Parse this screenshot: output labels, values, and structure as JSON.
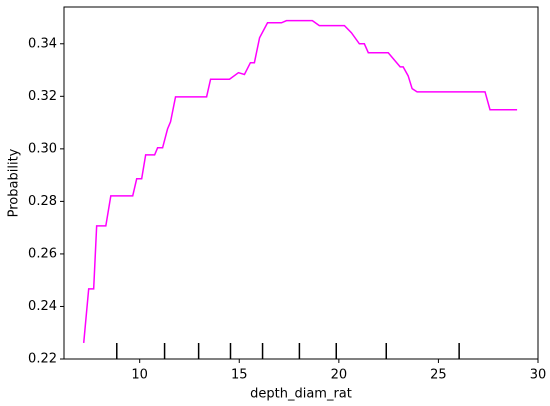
{
  "chart_data": {
    "type": "line",
    "x_label": "depth_diam_rat",
    "y_label": "Probability",
    "x": [
      7.19,
      7.44,
      7.69,
      7.84,
      8.3,
      8.55,
      9.65,
      9.85,
      10.1,
      10.3,
      10.75,
      10.9,
      11.15,
      11.4,
      11.55,
      11.8,
      13.36,
      13.56,
      14.51,
      14.96,
      15.26,
      15.56,
      15.76,
      16.02,
      16.42,
      17.12,
      17.37,
      18.67,
      19.02,
      20.28,
      20.63,
      21.03,
      21.28,
      21.48,
      22.48,
      23.08,
      23.23,
      23.48,
      23.68,
      23.93,
      27.34,
      27.59,
      28.95
    ],
    "series": [
      {
        "color": "#ff00ff",
        "values": [
          0.2261,
          0.2467,
          0.2467,
          0.2707,
          0.2707,
          0.2821,
          0.2821,
          0.2886,
          0.2886,
          0.2977,
          0.2977,
          0.3004,
          0.3004,
          0.3076,
          0.3103,
          0.3198,
          0.3198,
          0.3265,
          0.3265,
          0.329,
          0.3283,
          0.3328,
          0.3328,
          0.3423,
          0.348,
          0.348,
          0.3488,
          0.3488,
          0.3469,
          0.3469,
          0.3442,
          0.34,
          0.34,
          0.3366,
          0.3366,
          0.3312,
          0.3312,
          0.3278,
          0.3229,
          0.3217,
          0.3217,
          0.3149,
          0.3149
        ]
      }
    ],
    "deciles": [
      8.85,
      11.25,
      12.96,
      14.56,
      16.17,
      18.02,
      19.87,
      22.38,
      26.04
    ],
    "xlim": [
      6.2,
      30
    ],
    "xticks": [
      10,
      15,
      20,
      25,
      30
    ],
    "ylim": [
      0.22,
      0.354
    ],
    "yticks": [
      0.22,
      0.24,
      0.26,
      0.28,
      {
        "value": 0.3,
        "label": "0.30"
      },
      0.32,
      0.34
    ],
    "grid": false
  }
}
